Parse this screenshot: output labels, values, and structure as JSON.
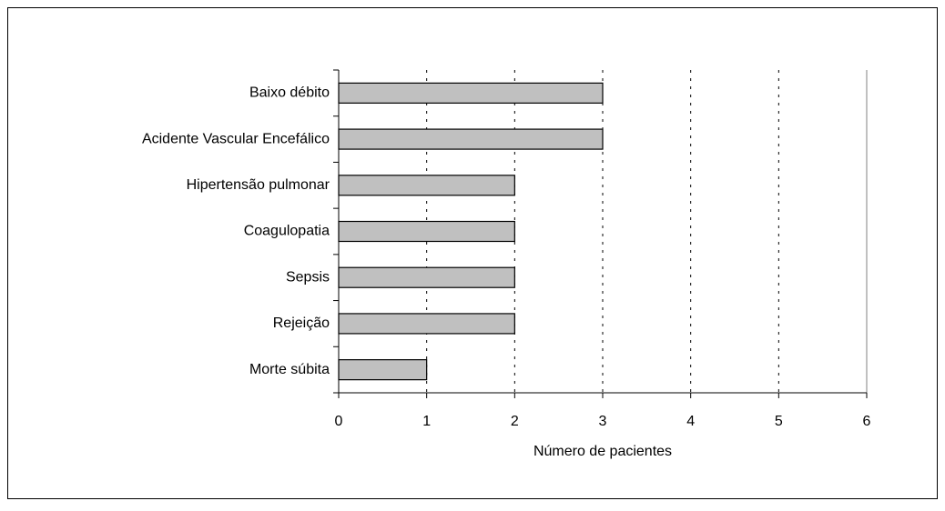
{
  "chart_data": {
    "type": "bar",
    "orientation": "horizontal",
    "categories": [
      "Baixo débito",
      "Acidente Vascular Encefálico",
      "Hipertensão pulmonar",
      "Coagulopatia",
      "Sepsis",
      "Rejeição",
      "Morte súbita"
    ],
    "values": [
      3,
      3,
      2,
      2,
      2,
      2,
      1
    ],
    "color": "#c0c0c0",
    "xlabel": "Número de pacientes",
    "xlim": [
      0,
      6
    ],
    "xticks": [
      0,
      1,
      2,
      3,
      4,
      5,
      6
    ],
    "grid": true
  }
}
